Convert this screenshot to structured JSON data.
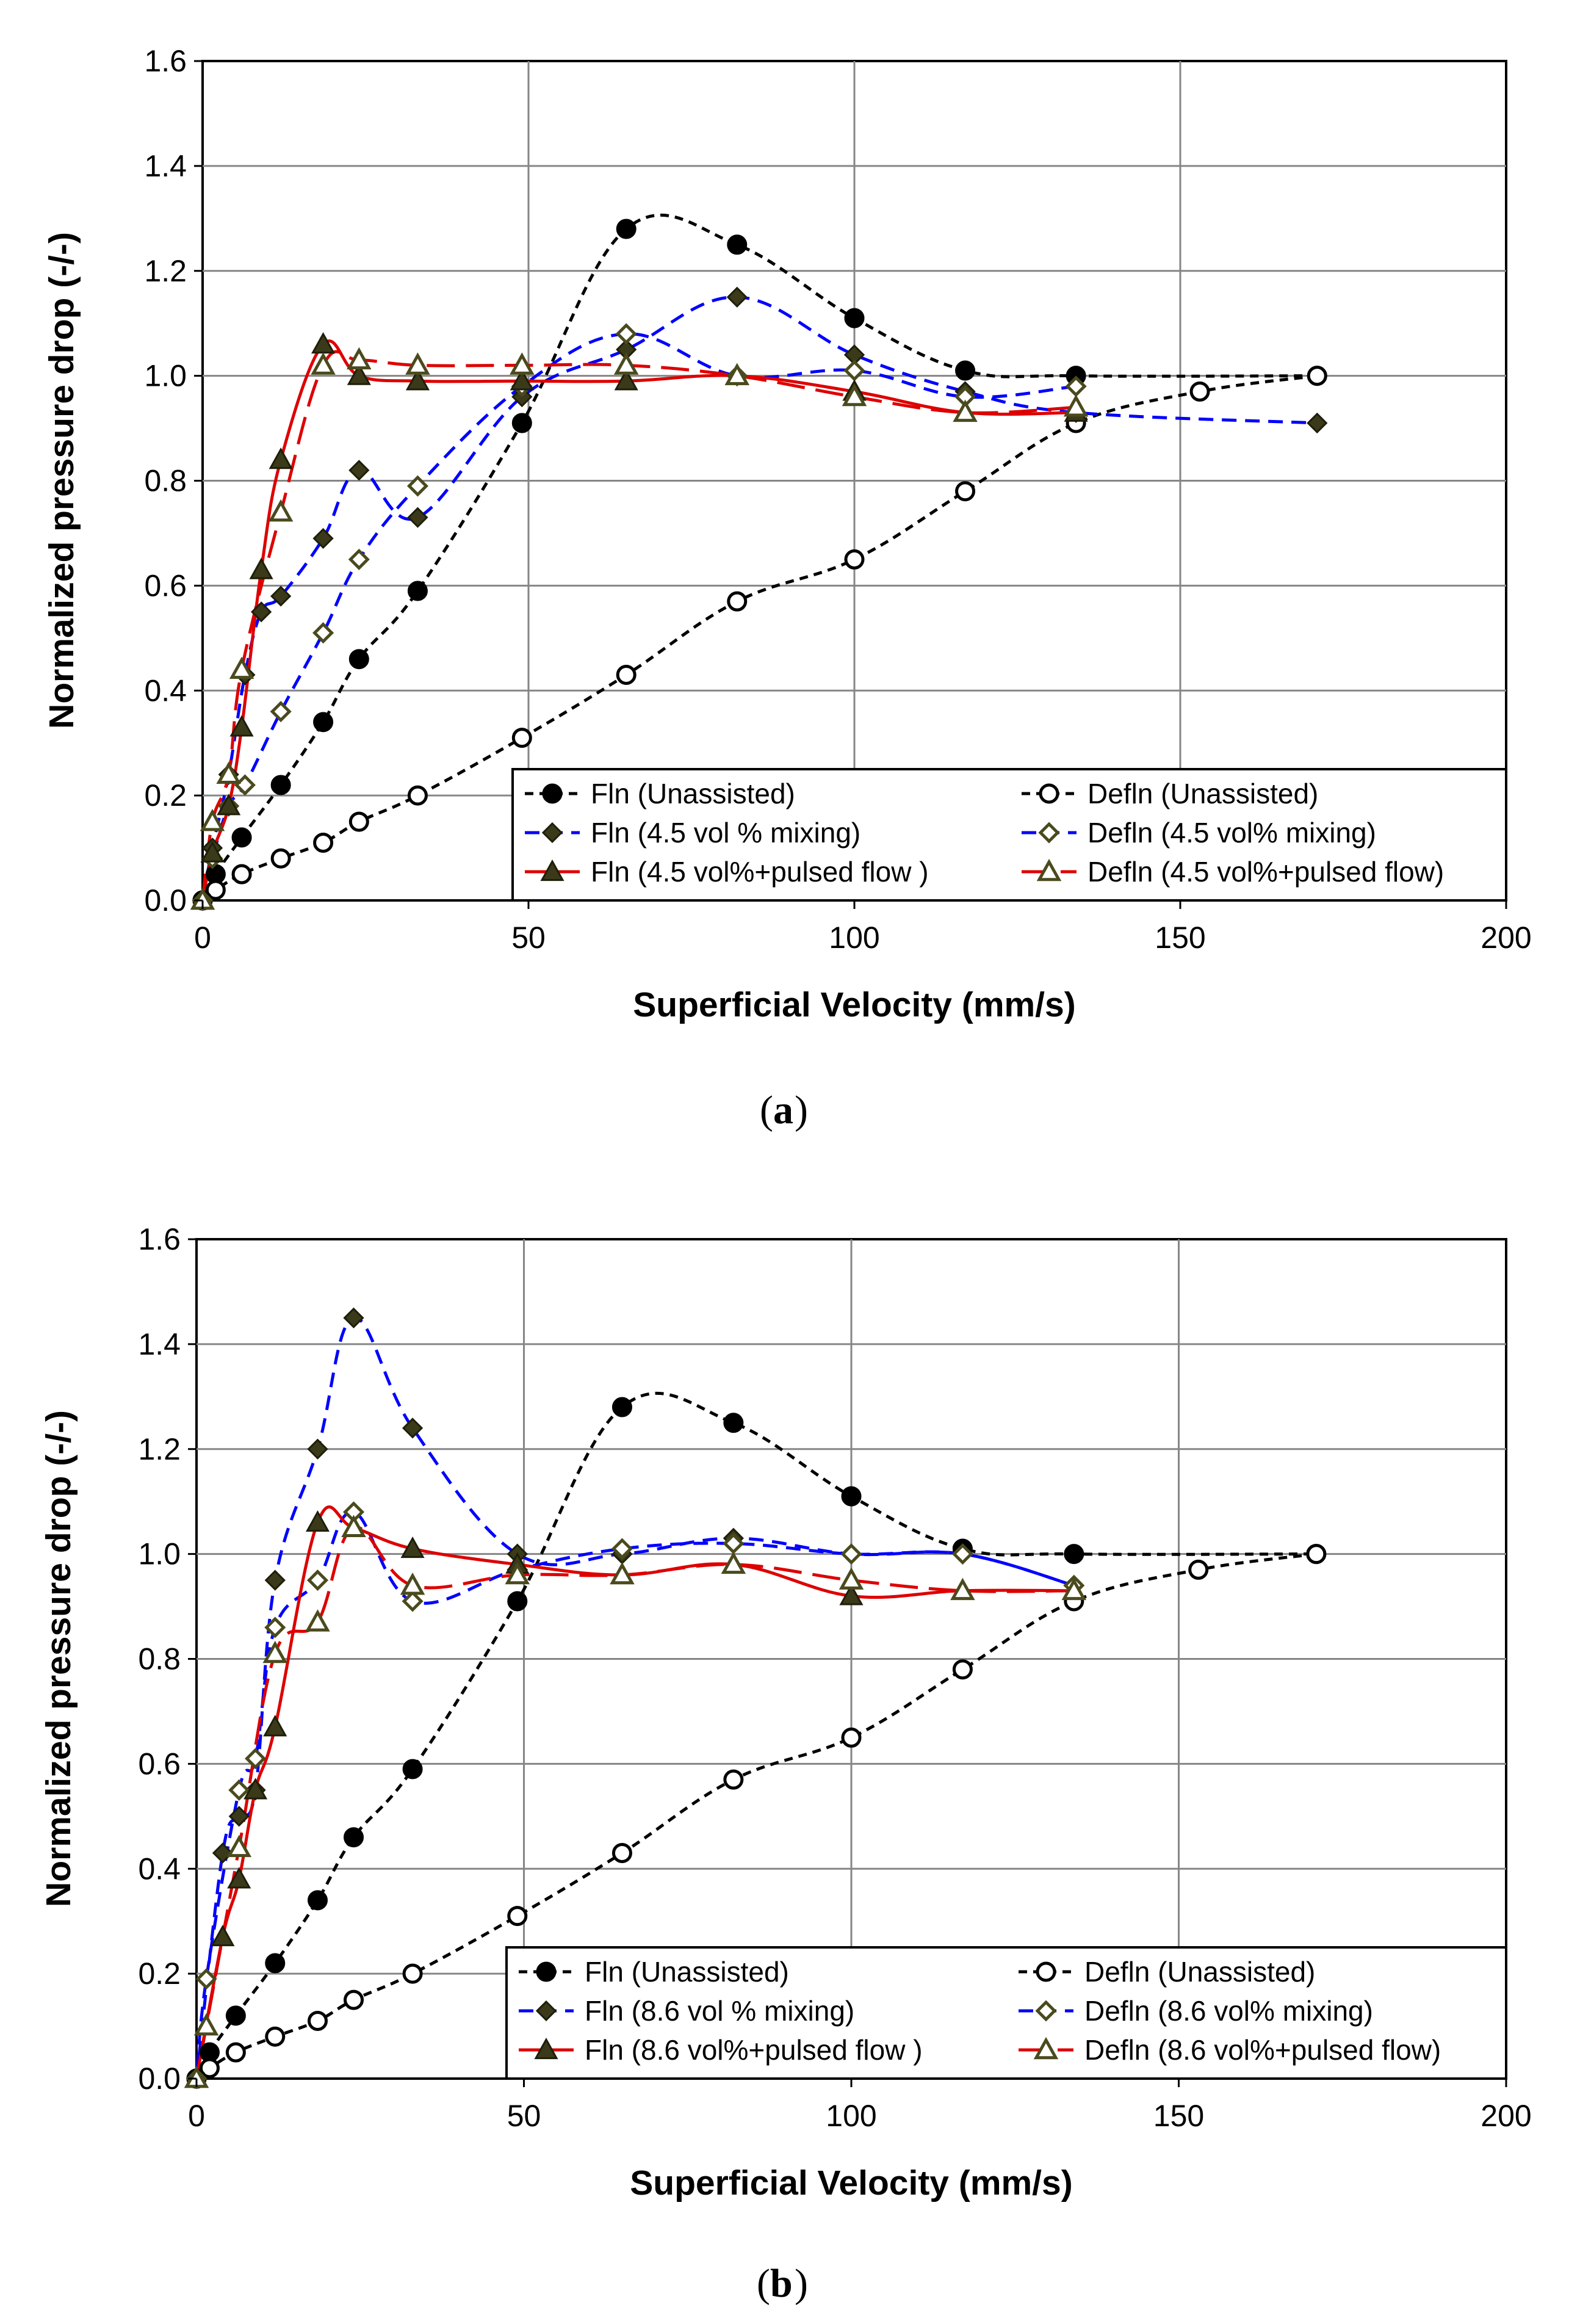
{
  "chart_data": [
    {
      "id": "a",
      "type": "line",
      "caption_letter": "a",
      "xlabel": "Superficial Velocity (mm/s)",
      "ylabel": "Normalized pressure drop (-/-)",
      "xlim": [
        0,
        200
      ],
      "ylim": [
        0,
        1.6
      ],
      "xticks": [
        "0",
        "50",
        "100",
        "150",
        "200"
      ],
      "yticks": [
        "0.0",
        "0.2",
        "0.4",
        "0.6",
        "0.8",
        "1.0",
        "1.2",
        "1.4",
        "1.6"
      ],
      "grid": true,
      "legend_position": "bottom-right",
      "series": [
        {
          "name": "Fln (Unassisted)",
          "color": "#000000",
          "dash": "short",
          "marker": "circle-filled",
          "x": [
            0,
            2,
            6,
            12,
            18.5,
            24,
            33,
            49,
            65,
            82,
            100,
            117,
            134,
            171
          ],
          "y": [
            0.0,
            0.05,
            0.12,
            0.22,
            0.34,
            0.46,
            0.59,
            0.91,
            1.28,
            1.25,
            1.11,
            1.01,
            1.0,
            1.0
          ]
        },
        {
          "name": "Defln (Unassisted)",
          "color": "#000000",
          "dash": "short",
          "marker": "circle-open",
          "x": [
            171,
            153,
            134,
            117,
            100,
            82,
            65,
            49,
            33,
            24,
            18.5,
            12,
            6,
            2,
            0
          ],
          "y": [
            1.0,
            0.97,
            0.91,
            0.78,
            0.65,
            0.57,
            0.43,
            0.31,
            0.2,
            0.15,
            0.11,
            0.08,
            0.05,
            0.02,
            0.0
          ]
        },
        {
          "name": "Fln (4.5 vol % mixing)",
          "color": "#0000ff",
          "dash": "medium",
          "marker": "diamond-filled",
          "x": [
            0,
            1.5,
            4,
            6.5,
            9,
            12,
            18.5,
            24,
            33,
            49,
            65,
            82,
            100,
            117,
            134,
            171
          ],
          "y": [
            0.0,
            0.1,
            0.24,
            0.43,
            0.55,
            0.58,
            0.69,
            0.82,
            0.73,
            0.96,
            1.05,
            1.15,
            1.04,
            0.97,
            0.93,
            0.91
          ]
        },
        {
          "name": "Defln (4.5 vol% mixing)",
          "color": "#0000ff",
          "dash": "medium",
          "marker": "diamond-open",
          "x": [
            134,
            117,
            100,
            82,
            65,
            49,
            33,
            24,
            18.5,
            12,
            6.5,
            4,
            1.5,
            0
          ],
          "y": [
            0.98,
            0.96,
            1.01,
            1.0,
            1.08,
            0.98,
            0.79,
            0.65,
            0.51,
            0.36,
            0.22,
            0.18,
            0.08,
            0.0
          ]
        },
        {
          "name": "Fln (4.5 vol%+pulsed flow )",
          "color": "#dd0000",
          "dash": "solid",
          "marker": "triangle-filled",
          "x": [
            0,
            1.5,
            4,
            6,
            9,
            12,
            18.5,
            24,
            33,
            49,
            65,
            82,
            100,
            117,
            134
          ],
          "y": [
            0.0,
            0.09,
            0.18,
            0.33,
            0.63,
            0.84,
            1.06,
            1.0,
            0.99,
            0.99,
            0.99,
            1.0,
            0.97,
            0.93,
            0.93
          ]
        },
        {
          "name": "Defln (4.5 vol%+pulsed flow)",
          "color": "#dd0000",
          "dash": "long",
          "marker": "triangle-open",
          "x": [
            134,
            117,
            100,
            82,
            65,
            49,
            33,
            24,
            18.5,
            12,
            6,
            4,
            1.5,
            0
          ],
          "y": [
            0.94,
            0.93,
            0.96,
            1.0,
            1.02,
            1.02,
            1.02,
            1.03,
            1.02,
            0.74,
            0.44,
            0.24,
            0.15,
            0.0
          ]
        }
      ]
    },
    {
      "id": "b",
      "type": "line",
      "caption_letter": "b",
      "xlabel": "Superficial Velocity (mm/s)",
      "ylabel": "Normalized pressure drop (-/-)",
      "xlim": [
        0,
        200
      ],
      "ylim": [
        0,
        1.6
      ],
      "xticks": [
        "0",
        "50",
        "100",
        "150",
        "200"
      ],
      "yticks": [
        "0.0",
        "0.2",
        "0.4",
        "0.6",
        "0.8",
        "1.0",
        "1.2",
        "1.4",
        "1.6"
      ],
      "grid": true,
      "legend_position": "bottom-right",
      "series": [
        {
          "name": "Fln (Unassisted)",
          "color": "#000000",
          "dash": "short",
          "marker": "circle-filled",
          "x": [
            0,
            2,
            6,
            12,
            18.5,
            24,
            33,
            49,
            65,
            82,
            100,
            117,
            134,
            171
          ],
          "y": [
            0.0,
            0.05,
            0.12,
            0.22,
            0.34,
            0.46,
            0.59,
            0.91,
            1.28,
            1.25,
            1.11,
            1.01,
            1.0,
            1.0
          ]
        },
        {
          "name": "Defln (Unassisted)",
          "color": "#000000",
          "dash": "short",
          "marker": "circle-open",
          "x": [
            171,
            153,
            134,
            117,
            100,
            82,
            65,
            49,
            33,
            24,
            18.5,
            12,
            6,
            2,
            0
          ],
          "y": [
            1.0,
            0.97,
            0.91,
            0.78,
            0.65,
            0.57,
            0.43,
            0.31,
            0.2,
            0.15,
            0.11,
            0.08,
            0.05,
            0.02,
            0.0
          ]
        },
        {
          "name": "Fln (8.6 vol % mixing)",
          "color": "#0000ff",
          "dash": "medium",
          "marker": "diamond-filled",
          "x": [
            0,
            4,
            6.5,
            9,
            12,
            18.5,
            24,
            33,
            49,
            65,
            82,
            100,
            117,
            134
          ],
          "y": [
            0.0,
            0.43,
            0.5,
            0.55,
            0.95,
            1.2,
            1.45,
            1.24,
            1.0,
            1.0,
            1.03,
            1.0,
            1.0,
            0.94
          ]
        },
        {
          "name": "Defln (8.6 vol% mixing)",
          "color": "#0000ff",
          "dash": "medium",
          "marker": "diamond-open",
          "x": [
            134,
            117,
            100,
            82,
            65,
            49,
            33,
            24,
            18.5,
            12,
            9,
            6.5,
            1.5,
            0
          ],
          "y": [
            0.94,
            1.0,
            1.0,
            1.02,
            1.01,
            0.97,
            0.91,
            1.08,
            0.95,
            0.86,
            0.61,
            0.55,
            0.19,
            0.0
          ]
        },
        {
          "name": "Fln (8.6 vol%+pulsed flow )",
          "color": "#dd0000",
          "dash": "solid",
          "marker": "triangle-filled",
          "x": [
            0,
            4,
            6.5,
            9,
            12,
            18.5,
            24,
            33,
            49,
            65,
            82,
            100,
            117,
            134
          ],
          "y": [
            0.0,
            0.27,
            0.38,
            0.55,
            0.67,
            1.06,
            1.05,
            1.01,
            0.98,
            0.96,
            0.98,
            0.92,
            0.93,
            0.93
          ]
        },
        {
          "name": "Defln (8.6 vol%+pulsed flow)",
          "color": "#dd0000",
          "dash": "long",
          "marker": "triangle-open",
          "x": [
            134,
            117,
            100,
            82,
            65,
            49,
            33,
            24,
            18.5,
            12,
            6.5,
            1.5,
            0
          ],
          "y": [
            0.93,
            0.93,
            0.95,
            0.98,
            0.96,
            0.96,
            0.94,
            1.05,
            0.87,
            0.81,
            0.44,
            0.1,
            0.0
          ]
        }
      ]
    }
  ]
}
